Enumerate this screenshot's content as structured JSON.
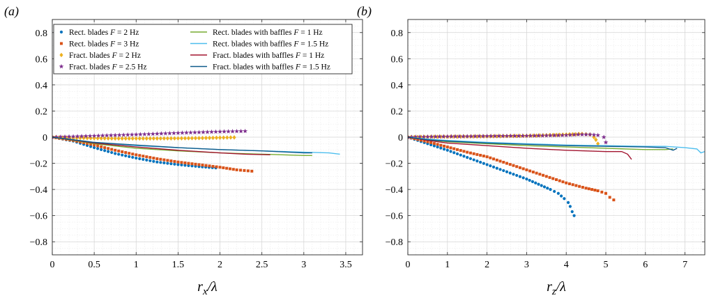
{
  "chart_data": [
    {
      "type": "scatter",
      "panel_label": "(a)",
      "xlabel": "r_x/λ",
      "xlim": [
        0,
        3.7
      ],
      "ylim": [
        -0.9,
        0.9
      ],
      "xticks": [
        0,
        0.5,
        1,
        1.5,
        2,
        2.5,
        3,
        3.5
      ],
      "xtick_labels": [
        "0",
        "0.5",
        "1",
        "1.5",
        "2",
        "2.5",
        "3",
        "3.5"
      ],
      "yticks": [
        -0.8,
        -0.6,
        -0.4,
        -0.2,
        0,
        0.2,
        0.4,
        0.6,
        0.8
      ],
      "ytick_labels": [
        "−0.8",
        "−0.6",
        "−0.4",
        "−0.2",
        "0",
        "0.2",
        "0.4",
        "0.6",
        "0.8"
      ],
      "grid": true,
      "legend_position": "top",
      "series": [
        {
          "name": "Rect. blades F = 2 Hz",
          "label_main": "Rect. blades ",
          "label_var": "F",
          "label_rest": " = 2 Hz",
          "marker": "dot",
          "color": "#0072BD",
          "points": [
            [
              0,
              0
            ],
            [
              0.25,
              -0.03
            ],
            [
              0.5,
              -0.08
            ],
            [
              0.75,
              -0.125
            ],
            [
              1.0,
              -0.16
            ],
            [
              1.25,
              -0.19
            ],
            [
              1.5,
              -0.21
            ],
            [
              1.75,
              -0.225
            ],
            [
              1.95,
              -0.235
            ]
          ]
        },
        {
          "name": "Rect. blades F = 3 Hz",
          "label_main": "Rect. blades ",
          "label_var": "F",
          "label_rest": " = 3 Hz",
          "marker": "square",
          "color": "#D95319",
          "points": [
            [
              0,
              0
            ],
            [
              0.25,
              -0.025
            ],
            [
              0.5,
              -0.06
            ],
            [
              0.75,
              -0.1
            ],
            [
              1.0,
              -0.135
            ],
            [
              1.25,
              -0.165
            ],
            [
              1.5,
              -0.19
            ],
            [
              1.75,
              -0.21
            ],
            [
              2.0,
              -0.23
            ],
            [
              2.2,
              -0.25
            ],
            [
              2.38,
              -0.26
            ]
          ]
        },
        {
          "name": "Fract. blades F = 2 Hz",
          "label_main": "Fract. blades ",
          "label_var": "F",
          "label_rest": " = 2 Hz",
          "marker": "diamond",
          "color": "#EDB120",
          "points": [
            [
              0,
              0
            ],
            [
              0.25,
              -0.005
            ],
            [
              0.5,
              -0.008
            ],
            [
              0.75,
              -0.01
            ],
            [
              1.0,
              -0.01
            ],
            [
              1.25,
              -0.01
            ],
            [
              1.5,
              -0.009
            ],
            [
              1.75,
              -0.007
            ],
            [
              2.0,
              -0.004
            ],
            [
              2.17,
              -0.002
            ]
          ]
        },
        {
          "name": "Fract. blades F = 2.5 Hz",
          "label_main": "Fract. blades ",
          "label_var": "F",
          "label_rest": " = 2.5 Hz",
          "marker": "star",
          "color": "#7E2F8E",
          "points": [
            [
              0,
              0
            ],
            [
              0.25,
              0.005
            ],
            [
              0.5,
              0.01
            ],
            [
              0.75,
              0.015
            ],
            [
              1.0,
              0.02
            ],
            [
              1.25,
              0.026
            ],
            [
              1.5,
              0.032
            ],
            [
              1.75,
              0.037
            ],
            [
              2.0,
              0.042
            ],
            [
              2.2,
              0.045
            ],
            [
              2.3,
              0.046
            ]
          ]
        },
        {
          "name": "Rect. blades with baffles F = 1 Hz",
          "label_main": "Rect. blades with baffles ",
          "label_var": "F",
          "label_rest": " = 1 Hz",
          "marker": "line",
          "color": "#77AC30",
          "points": [
            [
              0,
              0
            ],
            [
              0.5,
              -0.05
            ],
            [
              1.0,
              -0.085
            ],
            [
              1.5,
              -0.105
            ],
            [
              2.0,
              -0.12
            ],
            [
              2.5,
              -0.13
            ],
            [
              3.0,
              -0.14
            ],
            [
              3.1,
              -0.14
            ]
          ]
        },
        {
          "name": "Rect. blades with baffles F = 1.5 Hz",
          "label_main": "Rect. blades with baffles ",
          "label_var": "F",
          "label_rest": " = 1.5 Hz",
          "marker": "line",
          "color": "#4DBEEE",
          "points": [
            [
              0,
              0
            ],
            [
              0.5,
              -0.04
            ],
            [
              1.0,
              -0.065
            ],
            [
              1.5,
              -0.08
            ],
            [
              2.0,
              -0.095
            ],
            [
              2.5,
              -0.105
            ],
            [
              3.0,
              -0.115
            ],
            [
              3.3,
              -0.12
            ],
            [
              3.43,
              -0.13
            ]
          ]
        },
        {
          "name": "Fract. blades with baffles F = 1 Hz",
          "label_main": "Fract. blades with baffles ",
          "label_var": "F",
          "label_rest": " = 1 Hz",
          "marker": "line",
          "color": "#A2142F",
          "points": [
            [
              0,
              0
            ],
            [
              0.5,
              -0.045
            ],
            [
              1.0,
              -0.075
            ],
            [
              1.5,
              -0.1
            ],
            [
              2.0,
              -0.12
            ],
            [
              2.3,
              -0.13
            ],
            [
              2.6,
              -0.135
            ]
          ]
        },
        {
          "name": "Fract. blades with baffles F = 1.5 Hz",
          "label_main": "Fract. blades with baffles ",
          "label_var": "F",
          "label_rest": " = 1.5 Hz",
          "marker": "line",
          "color": "#0E5A8A",
          "points": [
            [
              0,
              0
            ],
            [
              0.5,
              -0.04
            ],
            [
              1.0,
              -0.06
            ],
            [
              1.5,
              -0.08
            ],
            [
              2.0,
              -0.095
            ],
            [
              2.5,
              -0.105
            ],
            [
              3.0,
              -0.12
            ],
            [
              3.1,
              -0.12
            ]
          ]
        }
      ]
    },
    {
      "type": "scatter",
      "panel_label": "(b)",
      "xlabel": "r_z/λ",
      "xlim": [
        0,
        7.5
      ],
      "ylim": [
        -0.9,
        0.9
      ],
      "xticks": [
        0,
        1,
        2,
        3,
        4,
        5,
        6,
        7
      ],
      "xtick_labels": [
        "0",
        "1",
        "2",
        "3",
        "4",
        "5",
        "6",
        "7"
      ],
      "yticks": [
        -0.8,
        -0.6,
        -0.4,
        -0.2,
        0,
        0.2,
        0.4,
        0.6,
        0.8
      ],
      "ytick_labels": [
        "−0.8",
        "−0.6",
        "−0.4",
        "−0.2",
        "0",
        "0.2",
        "0.4",
        "0.6",
        "0.8"
      ],
      "grid": true,
      "series": [
        {
          "marker": "dot",
          "color": "#0072BD",
          "points": [
            [
              0,
              0
            ],
            [
              0.5,
              -0.05
            ],
            [
              1.0,
              -0.1
            ],
            [
              1.5,
              -0.155
            ],
            [
              2.0,
              -0.21
            ],
            [
              2.5,
              -0.265
            ],
            [
              3.0,
              -0.32
            ],
            [
              3.3,
              -0.36
            ],
            [
              3.6,
              -0.4
            ],
            [
              3.8,
              -0.43
            ],
            [
              3.95,
              -0.47
            ],
            [
              4.05,
              -0.5
            ],
            [
              4.1,
              -0.53
            ],
            [
              4.15,
              -0.57
            ],
            [
              4.2,
              -0.6
            ]
          ]
        },
        {
          "marker": "square",
          "color": "#D95319",
          "points": [
            [
              0,
              0
            ],
            [
              0.5,
              -0.035
            ],
            [
              1.0,
              -0.075
            ],
            [
              1.5,
              -0.115
            ],
            [
              2.0,
              -0.15
            ],
            [
              2.5,
              -0.2
            ],
            [
              3.0,
              -0.25
            ],
            [
              3.5,
              -0.3
            ],
            [
              4.0,
              -0.35
            ],
            [
              4.5,
              -0.39
            ],
            [
              4.8,
              -0.41
            ],
            [
              5.0,
              -0.43
            ],
            [
              5.1,
              -0.46
            ],
            [
              5.2,
              -0.48
            ]
          ]
        },
        {
          "marker": "diamond",
          "color": "#EDB120",
          "points": [
            [
              0,
              0
            ],
            [
              0.5,
              0.003
            ],
            [
              1.0,
              0.004
            ],
            [
              1.5,
              0.005
            ],
            [
              2.0,
              0.006
            ],
            [
              2.5,
              0.008
            ],
            [
              3.0,
              0.01
            ],
            [
              3.5,
              0.015
            ],
            [
              4.0,
              0.02
            ],
            [
              4.4,
              0.025
            ],
            [
              4.6,
              0.02
            ],
            [
              4.7,
              0.0
            ],
            [
              4.75,
              -0.02
            ],
            [
              4.8,
              -0.05
            ]
          ]
        },
        {
          "marker": "star",
          "color": "#7E2F8E",
          "points": [
            [
              0,
              0
            ],
            [
              0.5,
              0.003
            ],
            [
              1.0,
              0.005
            ],
            [
              1.5,
              0.006
            ],
            [
              2.0,
              0.008
            ],
            [
              2.5,
              0.009
            ],
            [
              3.0,
              0.01
            ],
            [
              3.5,
              0.012
            ],
            [
              4.0,
              0.015
            ],
            [
              4.3,
              0.02
            ],
            [
              4.6,
              0.02
            ],
            [
              4.8,
              0.015
            ],
            [
              4.95,
              0.0
            ],
            [
              5.0,
              -0.04
            ]
          ]
        },
        {
          "marker": "line",
          "color": "#77AC30",
          "points": [
            [
              0,
              0
            ],
            [
              0.5,
              -0.02
            ],
            [
              1.0,
              -0.035
            ],
            [
              2.0,
              -0.05
            ],
            [
              3.0,
              -0.065
            ],
            [
              4.0,
              -0.075
            ],
            [
              5.0,
              -0.085
            ],
            [
              5.5,
              -0.09
            ],
            [
              6.0,
              -0.095
            ],
            [
              6.5,
              -0.095
            ],
            [
              6.7,
              -0.09
            ]
          ]
        },
        {
          "marker": "line",
          "color": "#4DBEEE",
          "points": [
            [
              0,
              0
            ],
            [
              0.5,
              -0.015
            ],
            [
              1.0,
              -0.025
            ],
            [
              2.0,
              -0.04
            ],
            [
              3.0,
              -0.05
            ],
            [
              4.0,
              -0.06
            ],
            [
              5.0,
              -0.065
            ],
            [
              6.0,
              -0.07
            ],
            [
              6.5,
              -0.07
            ],
            [
              7.0,
              -0.08
            ],
            [
              7.3,
              -0.09
            ],
            [
              7.4,
              -0.12
            ],
            [
              7.5,
              -0.11
            ]
          ]
        },
        {
          "marker": "line",
          "color": "#A2142F",
          "points": [
            [
              0,
              0
            ],
            [
              0.5,
              -0.025
            ],
            [
              1.0,
              -0.045
            ],
            [
              2.0,
              -0.065
            ],
            [
              3.0,
              -0.085
            ],
            [
              4.0,
              -0.1
            ],
            [
              5.0,
              -0.11
            ],
            [
              5.4,
              -0.11
            ],
            [
              5.55,
              -0.13
            ],
            [
              5.65,
              -0.17
            ]
          ]
        },
        {
          "marker": "line",
          "color": "#0E5A8A",
          "points": [
            [
              0,
              0
            ],
            [
              0.5,
              -0.02
            ],
            [
              1.0,
              -0.03
            ],
            [
              2.0,
              -0.045
            ],
            [
              3.0,
              -0.055
            ],
            [
              4.0,
              -0.065
            ],
            [
              5.0,
              -0.07
            ],
            [
              6.0,
              -0.075
            ],
            [
              6.5,
              -0.08
            ],
            [
              6.7,
              -0.1
            ],
            [
              6.8,
              -0.085
            ]
          ]
        }
      ]
    }
  ]
}
